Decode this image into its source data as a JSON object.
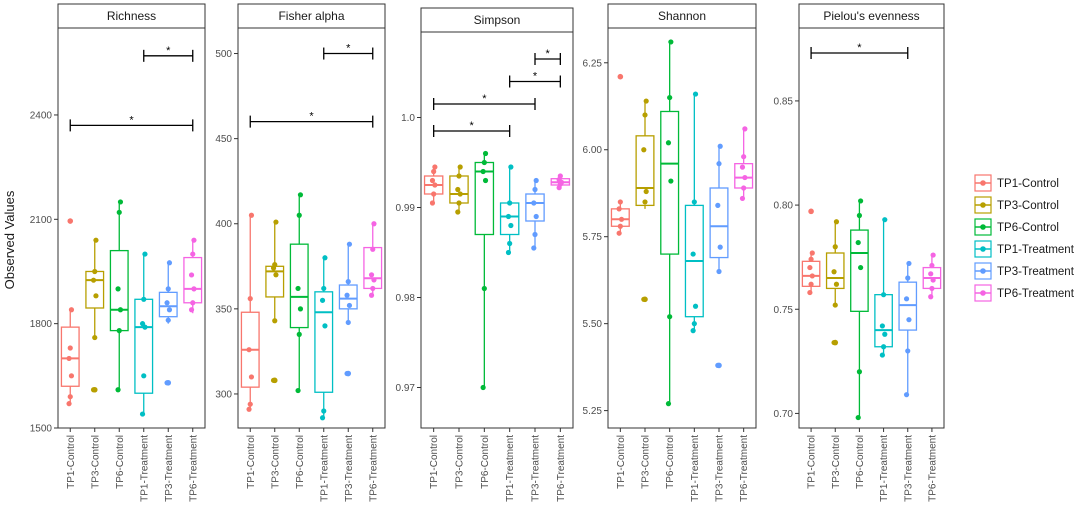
{
  "chart_data": {
    "type": "boxplot",
    "ylabel": "Observed Values",
    "groups": [
      "TP1-Control",
      "TP3-Control",
      "TP6-Control",
      "TP1-Treatment",
      "TP3-Treatment",
      "TP6-Treatment"
    ],
    "colors": {
      "TP1-Control": "#F8766D",
      "TP3-Control": "#B79F00",
      "TP6-Control": "#00BA38",
      "TP1-Treatment": "#00BFC4",
      "TP3-Treatment": "#619CFF",
      "TP6-Treatment": "#F564E3"
    },
    "legend": {
      "position": "right",
      "items": [
        "TP1-Control",
        "TP3-Control",
        "TP6-Control",
        "TP1-Treatment",
        "TP3-Treatment",
        "TP6-Treatment"
      ]
    },
    "panels": [
      {
        "title": "Richness",
        "ylim": [
          1500,
          2650
        ],
        "yticks": [
          1500,
          1800,
          2100,
          2400
        ],
        "boxes": [
          {
            "group": "TP1-Control",
            "q1": 1620,
            "median": 1700,
            "q3": 1790,
            "whisker_low": 1570,
            "whisker_high": 1840,
            "points": [
              1570,
              1590,
              1650,
              1700,
              1730,
              1840
            ],
            "outliers": [
              2095
            ]
          },
          {
            "group": "TP3-Control",
            "q1": 1845,
            "median": 1925,
            "q3": 1950,
            "whisker_low": 1760,
            "whisker_high": 2040,
            "points": [
              1610,
              1760,
              1880,
              1925,
              1950,
              2040
            ],
            "outliers": [
              1610
            ]
          },
          {
            "group": "TP6-Control",
            "q1": 1780,
            "median": 1840,
            "q3": 2010,
            "whisker_low": 1610,
            "whisker_high": 2150,
            "points": [
              1610,
              1780,
              1840,
              1900,
              2120,
              2150
            ],
            "outliers": []
          },
          {
            "group": "TP1-Treatment",
            "q1": 1600,
            "median": 1790,
            "q3": 1870,
            "whisker_low": 1540,
            "whisker_high": 2000,
            "points": [
              1540,
              1650,
              1790,
              1800,
              1870,
              2000
            ],
            "outliers": []
          },
          {
            "group": "TP3-Treatment",
            "q1": 1820,
            "median": 1850,
            "q3": 1890,
            "whisker_low": 1800,
            "whisker_high": 1975,
            "points": [
              1630,
              1810,
              1840,
              1860,
              1900,
              1975
            ],
            "outliers": [
              1630
            ]
          },
          {
            "group": "TP6-Treatment",
            "q1": 1860,
            "median": 1900,
            "q3": 1990,
            "whisker_low": 1830,
            "whisker_high": 2040,
            "points": [
              1840,
              1860,
              1900,
              1940,
              2000,
              2040
            ],
            "outliers": []
          }
        ],
        "significance": [
          {
            "from": "TP1-Control",
            "to": "TP6-Treatment",
            "y": 2370,
            "label": "*"
          },
          {
            "from": "TP1-Treatment",
            "to": "TP6-Treatment",
            "y": 2570,
            "label": "*"
          }
        ]
      },
      {
        "title": "Fisher alpha",
        "ylim": [
          280,
          515
        ],
        "yticks": [
          300,
          350,
          400,
          450,
          500
        ],
        "boxes": [
          {
            "group": "TP1-Control",
            "q1": 304,
            "median": 326,
            "q3": 348,
            "whisker_low": 291,
            "whisker_high": 405,
            "points": [
              291,
              294,
              310,
              326,
              356,
              405
            ],
            "outliers": []
          },
          {
            "group": "TP3-Control",
            "q1": 357,
            "median": 372,
            "q3": 375,
            "whisker_low": 343,
            "whisker_high": 401,
            "points": [
              308,
              343,
              370,
              374,
              376,
              401
            ],
            "outliers": [
              308
            ]
          },
          {
            "group": "TP6-Control",
            "q1": 339,
            "median": 357,
            "q3": 388,
            "whisker_low": 302,
            "whisker_high": 417,
            "points": [
              302,
              335,
              350,
              362,
              405,
              417
            ],
            "outliers": []
          },
          {
            "group": "TP1-Treatment",
            "q1": 301,
            "median": 348,
            "q3": 360,
            "whisker_low": 286,
            "whisker_high": 380,
            "points": [
              286,
              290,
              340,
              355,
              362,
              380
            ],
            "outliers": []
          },
          {
            "group": "TP3-Treatment",
            "q1": 350,
            "median": 356,
            "q3": 364,
            "whisker_low": 342,
            "whisker_high": 388,
            "points": [
              312,
              342,
              352,
              358,
              366,
              388
            ],
            "outliers": [
              312
            ]
          },
          {
            "group": "TP6-Treatment",
            "q1": 362,
            "median": 368,
            "q3": 386,
            "whisker_low": 358,
            "whisker_high": 400,
            "points": [
              358,
              362,
              367,
              370,
              385,
              400
            ],
            "outliers": []
          }
        ],
        "significance": [
          {
            "from": "TP1-Control",
            "to": "TP6-Treatment",
            "y": 460,
            "label": "*"
          },
          {
            "from": "TP1-Treatment",
            "to": "TP6-Treatment",
            "y": 500,
            "label": "*"
          }
        ]
      },
      {
        "title": "Simpson",
        "ylim": [
          0.9655,
          1.0095
        ],
        "yticks": [
          0.97,
          0.98,
          0.99,
          1.0
        ],
        "yticklabels": [
          "0.97",
          "0.98",
          "0.99",
          "1.0"
        ],
        "boxes": [
          {
            "group": "TP1-Control",
            "q1": 0.9915,
            "median": 0.9925,
            "q3": 0.9935,
            "whisker_low": 0.9905,
            "whisker_high": 0.9945,
            "points": [
              0.9905,
              0.9915,
              0.9925,
              0.993,
              0.994,
              0.9945
            ],
            "outliers": []
          },
          {
            "group": "TP3-Control",
            "q1": 0.9905,
            "median": 0.9915,
            "q3": 0.9935,
            "whisker_low": 0.9895,
            "whisker_high": 0.9945,
            "points": [
              0.9895,
              0.9905,
              0.9915,
              0.992,
              0.9935,
              0.9945
            ],
            "outliers": []
          },
          {
            "group": "TP6-Control",
            "q1": 0.987,
            "median": 0.994,
            "q3": 0.995,
            "whisker_low": 0.97,
            "whisker_high": 0.996,
            "points": [
              0.97,
              0.981,
              0.993,
              0.994,
              0.995,
              0.996
            ],
            "outliers": []
          },
          {
            "group": "TP1-Treatment",
            "q1": 0.987,
            "median": 0.989,
            "q3": 0.9905,
            "whisker_low": 0.985,
            "whisker_high": 0.9945,
            "points": [
              0.985,
              0.986,
              0.988,
              0.989,
              0.9905,
              0.9945
            ],
            "outliers": []
          },
          {
            "group": "TP3-Treatment",
            "q1": 0.9885,
            "median": 0.9905,
            "q3": 0.9915,
            "whisker_low": 0.9855,
            "whisker_high": 0.993,
            "points": [
              0.9855,
              0.987,
              0.989,
              0.9905,
              0.992,
              0.993
            ],
            "outliers": []
          },
          {
            "group": "TP6-Treatment",
            "q1": 0.9925,
            "median": 0.9928,
            "q3": 0.9932,
            "whisker_low": 0.9922,
            "whisker_high": 0.9935,
            "points": [
              0.9922,
              0.9926,
              0.9928,
              0.9931,
              0.9935
            ],
            "outliers": []
          }
        ],
        "significance": [
          {
            "from": "TP1-Control",
            "to": "TP1-Treatment",
            "y": 0.9985,
            "label": "*"
          },
          {
            "from": "TP1-Control",
            "to": "TP3-Treatment",
            "y": 1.0015,
            "label": "*"
          },
          {
            "from": "TP1-Treatment",
            "to": "TP6-Treatment",
            "y": 1.004,
            "label": "*"
          },
          {
            "from": "TP3-Treatment",
            "to": "TP6-Treatment",
            "y": 1.0065,
            "label": "*"
          }
        ]
      },
      {
        "title": "Shannon",
        "ylim": [
          5.2,
          6.35
        ],
        "yticks": [
          5.25,
          5.5,
          5.75,
          6.0,
          6.25
        ],
        "yticklabels": [
          "5.25",
          "5.50",
          "5.75",
          "6.00",
          "6.25"
        ],
        "boxes": [
          {
            "group": "TP1-Control",
            "q1": 5.78,
            "median": 5.8,
            "q3": 5.83,
            "whisker_low": 5.76,
            "whisker_high": 5.85,
            "points": [
              5.76,
              5.78,
              5.8,
              5.83,
              5.85
            ],
            "outliers": [
              6.21
            ]
          },
          {
            "group": "TP3-Control",
            "q1": 5.84,
            "median": 5.89,
            "q3": 6.04,
            "whisker_low": 5.83,
            "whisker_high": 6.14,
            "points": [
              5.57,
              5.85,
              5.88,
              6.0,
              6.1,
              6.14
            ],
            "outliers": [
              5.57
            ]
          },
          {
            "group": "TP6-Control",
            "q1": 5.7,
            "median": 5.96,
            "q3": 6.11,
            "whisker_low": 5.27,
            "whisker_high": 6.31,
            "points": [
              5.27,
              5.52,
              5.91,
              6.02,
              6.15,
              6.31
            ],
            "outliers": []
          },
          {
            "group": "TP1-Treatment",
            "q1": 5.52,
            "median": 5.68,
            "q3": 5.84,
            "whisker_low": 5.48,
            "whisker_high": 6.16,
            "points": [
              5.48,
              5.5,
              5.55,
              5.7,
              5.85,
              6.16
            ],
            "outliers": []
          },
          {
            "group": "TP3-Treatment",
            "q1": 5.69,
            "median": 5.78,
            "q3": 5.89,
            "whisker_low": 5.65,
            "whisker_high": 6.01,
            "points": [
              5.38,
              5.65,
              5.72,
              5.84,
              5.96,
              6.01
            ],
            "outliers": [
              5.38
            ]
          },
          {
            "group": "TP6-Treatment",
            "q1": 5.89,
            "median": 5.92,
            "q3": 5.96,
            "whisker_low": 5.86,
            "whisker_high": 6.06,
            "points": [
              5.86,
              5.89,
              5.92,
              5.95,
              5.98,
              6.06
            ],
            "outliers": []
          }
        ],
        "significance": []
      },
      {
        "title": "Pielou's evenness",
        "ylim": [
          0.693,
          0.885
        ],
        "yticks": [
          0.7,
          0.75,
          0.8,
          0.85
        ],
        "yticklabels": [
          "0.70",
          "0.75",
          "0.80",
          "0.85"
        ],
        "boxes": [
          {
            "group": "TP1-Control",
            "q1": 0.761,
            "median": 0.766,
            "q3": 0.773,
            "whisker_low": 0.758,
            "whisker_high": 0.777,
            "points": [
              0.758,
              0.762,
              0.766,
              0.77,
              0.774,
              0.777
            ],
            "outliers": [
              0.797
            ]
          },
          {
            "group": "TP3-Control",
            "q1": 0.76,
            "median": 0.765,
            "q3": 0.777,
            "whisker_low": 0.752,
            "whisker_high": 0.792,
            "points": [
              0.734,
              0.752,
              0.762,
              0.768,
              0.78,
              0.792
            ],
            "outliers": [
              0.734
            ]
          },
          {
            "group": "TP6-Control",
            "q1": 0.749,
            "median": 0.777,
            "q3": 0.788,
            "whisker_low": 0.698,
            "whisker_high": 0.802,
            "points": [
              0.698,
              0.72,
              0.77,
              0.782,
              0.795,
              0.802
            ],
            "outliers": []
          },
          {
            "group": "TP1-Treatment",
            "q1": 0.732,
            "median": 0.74,
            "q3": 0.757,
            "whisker_low": 0.728,
            "whisker_high": 0.793,
            "points": [
              0.728,
              0.732,
              0.738,
              0.742,
              0.757,
              0.793
            ],
            "outliers": []
          },
          {
            "group": "TP3-Treatment",
            "q1": 0.74,
            "median": 0.752,
            "q3": 0.763,
            "whisker_low": 0.709,
            "whisker_high": 0.772,
            "points": [
              0.709,
              0.73,
              0.745,
              0.755,
              0.765,
              0.772
            ],
            "outliers": []
          },
          {
            "group": "TP6-Treatment",
            "q1": 0.76,
            "median": 0.765,
            "q3": 0.77,
            "whisker_low": 0.756,
            "whisker_high": 0.776,
            "points": [
              0.756,
              0.76,
              0.764,
              0.767,
              0.771,
              0.776
            ],
            "outliers": []
          }
        ],
        "significance": [
          {
            "from": "TP1-Control",
            "to": "TP3-Treatment",
            "y": 0.873,
            "label": "*"
          }
        ]
      }
    ]
  }
}
